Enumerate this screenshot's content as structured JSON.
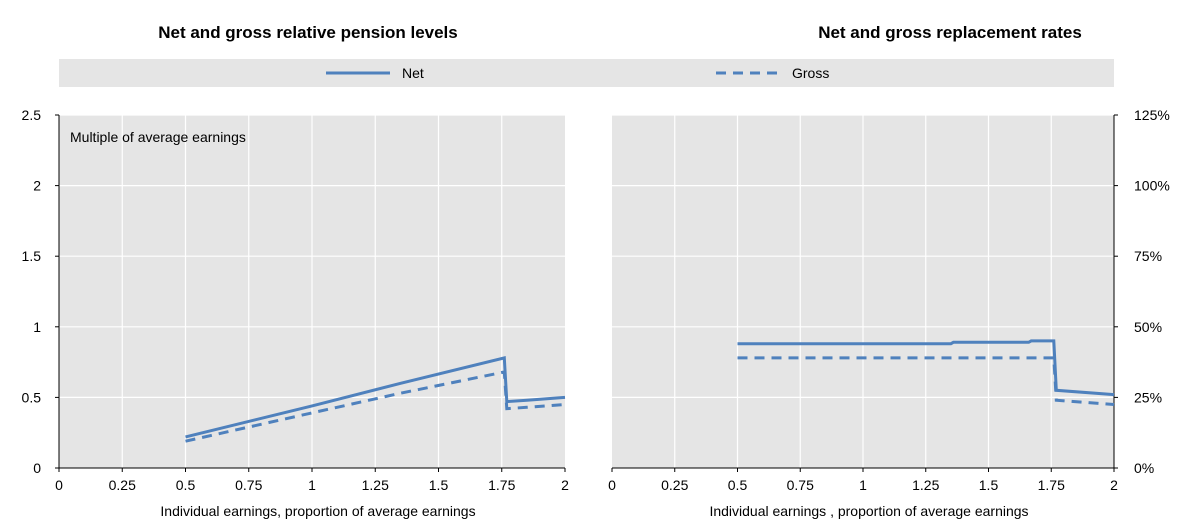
{
  "colors": {
    "series": "#4f81bd",
    "plot_bg": "#e5e5e5",
    "legend_bg": "#e5e5e5",
    "grid": "#ffffff",
    "axis": "#000000"
  },
  "legend": {
    "placement": "top",
    "entries": [
      {
        "name": "Net",
        "style": "solid"
      },
      {
        "name": "Gross",
        "style": "dashed"
      }
    ]
  },
  "chart_data": [
    {
      "type": "line",
      "title": "Net and gross relative pension levels",
      "annotation": "Multiple of average earnings",
      "xlabel": "Individual earnings, proportion of average earnings",
      "ylabel": "",
      "xlim": [
        0,
        2
      ],
      "ylim": [
        0,
        2.5
      ],
      "x_ticks": [
        "0",
        "0.25",
        "0.5",
        "0.75",
        "1",
        "1.25",
        "1.5",
        "1.75",
        "2"
      ],
      "y_ticks": [
        "0",
        "0.5",
        "1",
        "1.5",
        "2",
        "2.5"
      ],
      "y_axis_side": "left",
      "grid": true,
      "series": [
        {
          "name": "Net",
          "style": "solid",
          "points": [
            [
              0.5,
              0.22
            ],
            [
              1.0,
              0.44
            ],
            [
              1.35,
              0.6
            ],
            [
              1.76,
              0.78
            ],
            [
              1.77,
              0.47
            ],
            [
              1.85,
              0.48
            ],
            [
              2.0,
              0.5
            ]
          ]
        },
        {
          "name": "Gross",
          "style": "dashed",
          "points": [
            [
              0.5,
              0.19
            ],
            [
              1.0,
              0.39
            ],
            [
              1.35,
              0.53
            ],
            [
              1.76,
              0.68
            ],
            [
              1.77,
              0.42
            ],
            [
              1.85,
              0.43
            ],
            [
              2.0,
              0.45
            ]
          ]
        }
      ]
    },
    {
      "type": "line",
      "title": "Net and gross replacement rates",
      "annotation": "",
      "xlabel": "Individual earnings , proportion of average earnings",
      "ylabel": "",
      "xlim": [
        0,
        2
      ],
      "ylim": [
        0,
        125
      ],
      "x_ticks": [
        "0",
        "0.25",
        "0.5",
        "0.75",
        "1",
        "1.25",
        "1.5",
        "1.75",
        "2"
      ],
      "y_ticks": [
        "0%",
        "25%",
        "50%",
        "75%",
        "100%",
        "125%"
      ],
      "y_axis_side": "right",
      "grid": true,
      "series": [
        {
          "name": "Net",
          "style": "solid",
          "points": [
            [
              0.5,
              44
            ],
            [
              1.35,
              44
            ],
            [
              1.36,
              44.5
            ],
            [
              1.66,
              44.5
            ],
            [
              1.67,
              45
            ],
            [
              1.76,
              45
            ],
            [
              1.77,
              27.5
            ],
            [
              2.0,
              26
            ]
          ]
        },
        {
          "name": "Gross",
          "style": "dashed",
          "points": [
            [
              0.5,
              39
            ],
            [
              1.76,
              39
            ],
            [
              1.77,
              24
            ],
            [
              2.0,
              22.5
            ]
          ]
        }
      ]
    }
  ]
}
